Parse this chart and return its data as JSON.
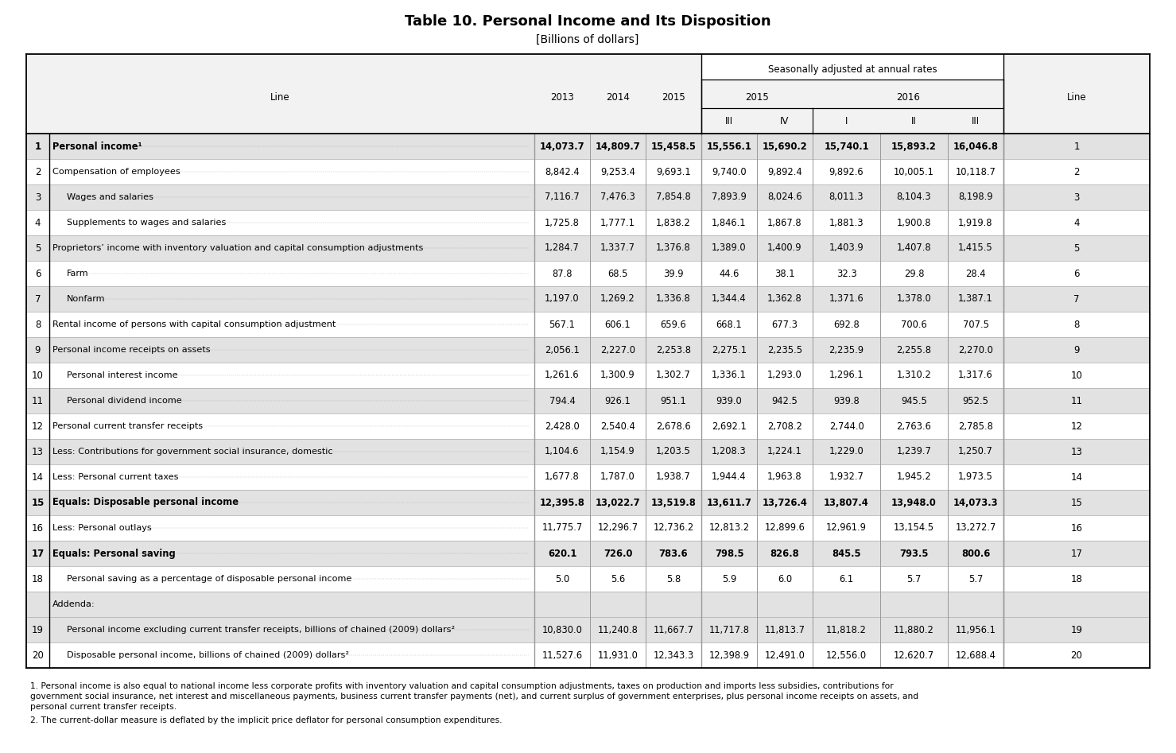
{
  "title": "Table 10. Personal Income and Its Disposition",
  "subtitle": "[Billions of dollars]",
  "seasonally_label": "Seasonally adjusted at annual rates",
  "rows": [
    {
      "line": "1",
      "label": "Personal income¹",
      "bold": true,
      "indent": 0,
      "shaded": true,
      "addenda": false,
      "vals": [
        "14,073.7",
        "14,809.7",
        "15,458.5",
        "15,556.1",
        "15,690.2",
        "15,740.1",
        "15,893.2",
        "16,046.8"
      ]
    },
    {
      "line": "2",
      "label": "Compensation of employees",
      "bold": false,
      "indent": 0,
      "shaded": false,
      "addenda": false,
      "vals": [
        "8,842.4",
        "9,253.4",
        "9,693.1",
        "9,740.0",
        "9,892.4",
        "9,892.6",
        "10,005.1",
        "10,118.7"
      ]
    },
    {
      "line": "3",
      "label": "Wages and salaries",
      "bold": false,
      "indent": 1,
      "shaded": true,
      "addenda": false,
      "vals": [
        "7,116.7",
        "7,476.3",
        "7,854.8",
        "7,893.9",
        "8,024.6",
        "8,011.3",
        "8,104.3",
        "8,198.9"
      ]
    },
    {
      "line": "4",
      "label": "Supplements to wages and salaries",
      "bold": false,
      "indent": 1,
      "shaded": false,
      "addenda": false,
      "vals": [
        "1,725.8",
        "1,777.1",
        "1,838.2",
        "1,846.1",
        "1,867.8",
        "1,881.3",
        "1,900.8",
        "1,919.8"
      ]
    },
    {
      "line": "5",
      "label": "Proprietors’ income with inventory valuation and capital consumption adjustments",
      "bold": false,
      "indent": 0,
      "shaded": true,
      "addenda": false,
      "vals": [
        "1,284.7",
        "1,337.7",
        "1,376.8",
        "1,389.0",
        "1,400.9",
        "1,403.9",
        "1,407.8",
        "1,415.5"
      ]
    },
    {
      "line": "6",
      "label": "Farm",
      "bold": false,
      "indent": 1,
      "shaded": false,
      "addenda": false,
      "vals": [
        "87.8",
        "68.5",
        "39.9",
        "44.6",
        "38.1",
        "32.3",
        "29.8",
        "28.4"
      ]
    },
    {
      "line": "7",
      "label": "Nonfarm",
      "bold": false,
      "indent": 1,
      "shaded": true,
      "addenda": false,
      "vals": [
        "1,197.0",
        "1,269.2",
        "1,336.8",
        "1,344.4",
        "1,362.8",
        "1,371.6",
        "1,378.0",
        "1,387.1"
      ]
    },
    {
      "line": "8",
      "label": "Rental income of persons with capital consumption adjustment",
      "bold": false,
      "indent": 0,
      "shaded": false,
      "addenda": false,
      "vals": [
        "567.1",
        "606.1",
        "659.6",
        "668.1",
        "677.3",
        "692.8",
        "700.6",
        "707.5"
      ]
    },
    {
      "line": "9",
      "label": "Personal income receipts on assets",
      "bold": false,
      "indent": 0,
      "shaded": true,
      "addenda": false,
      "vals": [
        "2,056.1",
        "2,227.0",
        "2,253.8",
        "2,275.1",
        "2,235.5",
        "2,235.9",
        "2,255.8",
        "2,270.0"
      ]
    },
    {
      "line": "10",
      "label": "Personal interest income",
      "bold": false,
      "indent": 1,
      "shaded": false,
      "addenda": false,
      "vals": [
        "1,261.6",
        "1,300.9",
        "1,302.7",
        "1,336.1",
        "1,293.0",
        "1,296.1",
        "1,310.2",
        "1,317.6"
      ]
    },
    {
      "line": "11",
      "label": "Personal dividend income",
      "bold": false,
      "indent": 1,
      "shaded": true,
      "addenda": false,
      "vals": [
        "794.4",
        "926.1",
        "951.1",
        "939.0",
        "942.5",
        "939.8",
        "945.5",
        "952.5"
      ]
    },
    {
      "line": "12",
      "label": "Personal current transfer receipts",
      "bold": false,
      "indent": 0,
      "shaded": false,
      "addenda": false,
      "vals": [
        "2,428.0",
        "2,540.4",
        "2,678.6",
        "2,692.1",
        "2,708.2",
        "2,744.0",
        "2,763.6",
        "2,785.8"
      ]
    },
    {
      "line": "13",
      "label": "Less: Contributions for government social insurance, domestic",
      "bold": false,
      "indent": 0,
      "shaded": true,
      "addenda": false,
      "vals": [
        "1,104.6",
        "1,154.9",
        "1,203.5",
        "1,208.3",
        "1,224.1",
        "1,229.0",
        "1,239.7",
        "1,250.7"
      ]
    },
    {
      "line": "14",
      "label": "Less: Personal current taxes",
      "bold": false,
      "indent": 0,
      "shaded": false,
      "addenda": false,
      "vals": [
        "1,677.8",
        "1,787.0",
        "1,938.7",
        "1,944.4",
        "1,963.8",
        "1,932.7",
        "1,945.2",
        "1,973.5"
      ]
    },
    {
      "line": "15",
      "label": "Equals: Disposable personal income",
      "bold": true,
      "indent": 0,
      "shaded": true,
      "addenda": false,
      "vals": [
        "12,395.8",
        "13,022.7",
        "13,519.8",
        "13,611.7",
        "13,726.4",
        "13,807.4",
        "13,948.0",
        "14,073.3"
      ]
    },
    {
      "line": "16",
      "label": "Less: Personal outlays",
      "bold": false,
      "indent": 0,
      "shaded": false,
      "addenda": false,
      "vals": [
        "11,775.7",
        "12,296.7",
        "12,736.2",
        "12,813.2",
        "12,899.6",
        "12,961.9",
        "13,154.5",
        "13,272.7"
      ]
    },
    {
      "line": "17",
      "label": "Equals: Personal saving",
      "bold": true,
      "indent": 0,
      "shaded": true,
      "addenda": false,
      "vals": [
        "620.1",
        "726.0",
        "783.6",
        "798.5",
        "826.8",
        "845.5",
        "793.5",
        "800.6"
      ]
    },
    {
      "line": "18",
      "label": "Personal saving as a percentage of disposable personal income",
      "bold": false,
      "indent": 1,
      "shaded": false,
      "addenda": false,
      "vals": [
        "5.0",
        "5.6",
        "5.8",
        "5.9",
        "6.0",
        "6.1",
        "5.7",
        "5.7"
      ]
    },
    {
      "line": "",
      "label": "Addenda:",
      "bold": false,
      "indent": 0,
      "shaded": true,
      "addenda": true,
      "vals": [
        "",
        "",
        "",
        "",
        "",
        "",
        "",
        ""
      ]
    },
    {
      "line": "19",
      "label": "Personal income excluding current transfer receipts, billions of chained (2009) dollars²",
      "bold": false,
      "indent": 1,
      "shaded": true,
      "addenda": false,
      "vals": [
        "10,830.0",
        "11,240.8",
        "11,667.7",
        "11,717.8",
        "11,813.7",
        "11,818.2",
        "11,880.2",
        "11,956.1"
      ]
    },
    {
      "line": "20",
      "label": "Disposable personal income, billions of chained (2009) dollars²",
      "bold": false,
      "indent": 1,
      "shaded": false,
      "addenda": false,
      "vals": [
        "11,527.6",
        "11,931.0",
        "12,343.3",
        "12,398.9",
        "12,491.0",
        "12,556.0",
        "12,620.7",
        "12,688.4"
      ]
    }
  ],
  "footnote1a": "1. Personal income is also equal to national income less corporate profits with inventory valuation and capital consumption adjustments, taxes on production and imports less subsidies, contributions for",
  "footnote1b": "government social insurance, net interest and miscellaneous payments, business current transfer payments (net), and current surplus of government enterprises, plus personal income receipts on assets, and",
  "footnote1c": "personal current transfer receipts.",
  "footnote2": "2. The current-dollar measure is deflated by the implicit price deflator for personal consumption expenditures.",
  "shaded_color": "#e2e2e2",
  "white_color": "#ffffff",
  "border_color": "#000000",
  "grid_color": "#888888"
}
